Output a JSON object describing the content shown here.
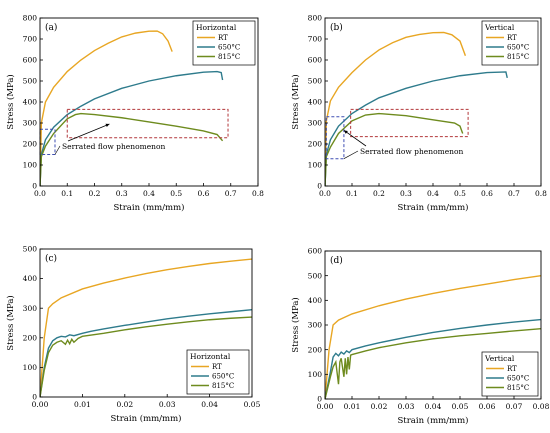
{
  "colors": {
    "RT": "#E8A623",
    "650C": "#2E7B8C",
    "815C": "#6E8B1E",
    "box_red": "#B2373A",
    "box_blue": "#3F4FB3"
  },
  "chart_data": [
    {
      "type": "line",
      "panel_label": "(a)",
      "legend_title": "Horizontal",
      "legend_position": "top-right",
      "xlabel": "Strain (mm/mm)",
      "ylabel": "Stress (MPa)",
      "xlim": [
        0,
        0.8
      ],
      "ylim": [
        0,
        800
      ],
      "xticks": [
        "0.0",
        "0.1",
        "0.2",
        "0.3",
        "0.4",
        "0.5",
        "0.6",
        "0.7",
        "0.8"
      ],
      "yticks": [
        "0",
        "100",
        "200",
        "300",
        "400",
        "500",
        "600",
        "700",
        "800"
      ],
      "annotation": "Serrated flow phenomenon",
      "series": [
        {
          "name": "RT",
          "color_key": "RT",
          "points": [
            [
              0,
              0
            ],
            [
              0.005,
              300
            ],
            [
              0.02,
              400
            ],
            [
              0.05,
              470
            ],
            [
              0.1,
              545
            ],
            [
              0.15,
              600
            ],
            [
              0.2,
              645
            ],
            [
              0.25,
              680
            ],
            [
              0.3,
              710
            ],
            [
              0.35,
              728
            ],
            [
              0.4,
              737
            ],
            [
              0.43,
              738
            ],
            [
              0.45,
              725
            ],
            [
              0.47,
              690
            ],
            [
              0.485,
              640
            ]
          ]
        },
        {
          "name": "650°C",
          "color_key": "650C",
          "points": [
            [
              0,
              0
            ],
            [
              0.005,
              150
            ],
            [
              0.02,
              220
            ],
            [
              0.05,
              280
            ],
            [
              0.1,
              340
            ],
            [
              0.15,
              380
            ],
            [
              0.2,
              415
            ],
            [
              0.3,
              465
            ],
            [
              0.4,
              500
            ],
            [
              0.5,
              525
            ],
            [
              0.6,
              542
            ],
            [
              0.65,
              545
            ],
            [
              0.665,
              540
            ],
            [
              0.67,
              505
            ]
          ]
        },
        {
          "name": "815°C",
          "color_key": "815C",
          "points": [
            [
              0,
              0
            ],
            [
              0.005,
              140
            ],
            [
              0.02,
              190
            ],
            [
              0.05,
              250
            ],
            [
              0.1,
              320
            ],
            [
              0.13,
              340
            ],
            [
              0.15,
              345
            ],
            [
              0.2,
              340
            ],
            [
              0.3,
              325
            ],
            [
              0.4,
              305
            ],
            [
              0.5,
              285
            ],
            [
              0.6,
              262
            ],
            [
              0.65,
              245
            ],
            [
              0.67,
              215
            ]
          ]
        }
      ],
      "boxes": [
        {
          "color_key": "box_red",
          "x": [
            0.1,
            0.69
          ],
          "y": [
            230,
            365
          ]
        },
        {
          "color_key": "box_blue",
          "x": [
            0,
            0.055
          ],
          "y": [
            150,
            270
          ]
        }
      ]
    },
    {
      "type": "line",
      "panel_label": "(b)",
      "legend_title": "Vertical",
      "legend_position": "top-right",
      "xlabel": "Strain (mm/mm)",
      "ylabel": "Stress (MPa)",
      "xlim": [
        0,
        0.8
      ],
      "ylim": [
        0,
        800
      ],
      "xticks": [
        "0.0",
        "0.1",
        "0.2",
        "0.3",
        "0.4",
        "0.5",
        "0.6",
        "0.7",
        "0.8"
      ],
      "yticks": [
        "0",
        "100",
        "200",
        "300",
        "400",
        "500",
        "600",
        "700",
        "800"
      ],
      "annotation": "Serrated flow phenomenon",
      "series": [
        {
          "name": "RT",
          "color_key": "RT",
          "points": [
            [
              0,
              0
            ],
            [
              0.005,
              310
            ],
            [
              0.02,
              405
            ],
            [
              0.05,
              470
            ],
            [
              0.1,
              540
            ],
            [
              0.15,
              600
            ],
            [
              0.2,
              648
            ],
            [
              0.25,
              682
            ],
            [
              0.3,
              708
            ],
            [
              0.35,
              722
            ],
            [
              0.4,
              730
            ],
            [
              0.44,
              731
            ],
            [
              0.47,
              720
            ],
            [
              0.5,
              690
            ],
            [
              0.52,
              620
            ]
          ]
        },
        {
          "name": "650°C",
          "color_key": "650C",
          "points": [
            [
              0,
              0
            ],
            [
              0.005,
              150
            ],
            [
              0.02,
              220
            ],
            [
              0.05,
              285
            ],
            [
              0.1,
              345
            ],
            [
              0.15,
              385
            ],
            [
              0.2,
              420
            ],
            [
              0.3,
              465
            ],
            [
              0.4,
              500
            ],
            [
              0.5,
              525
            ],
            [
              0.6,
              540
            ],
            [
              0.67,
              543
            ],
            [
              0.675,
              515
            ]
          ]
        },
        {
          "name": "815°C",
          "color_key": "815C",
          "points": [
            [
              0,
              0
            ],
            [
              0.005,
              140
            ],
            [
              0.02,
              185
            ],
            [
              0.05,
              250
            ],
            [
              0.1,
              310
            ],
            [
              0.15,
              338
            ],
            [
              0.2,
              345
            ],
            [
              0.3,
              335
            ],
            [
              0.4,
              315
            ],
            [
              0.48,
              300
            ],
            [
              0.5,
              285
            ],
            [
              0.51,
              250
            ]
          ]
        }
      ],
      "boxes": [
        {
          "color_key": "box_red",
          "x": [
            0.095,
            0.53
          ],
          "y": [
            235,
            365
          ]
        },
        {
          "color_key": "box_blue",
          "x": [
            0.005,
            0.07
          ],
          "y": [
            130,
            330
          ]
        }
      ]
    },
    {
      "type": "line",
      "panel_label": "(c)",
      "legend_title": "Horizontal",
      "legend_position": "bottom-right",
      "xlabel": "Strain (mm/mm)",
      "ylabel": "Stress (MPa)",
      "xlim": [
        0,
        0.05
      ],
      "ylim": [
        0,
        500
      ],
      "xticks": [
        "0.00",
        "0.01",
        "0.02",
        "0.03",
        "0.04",
        "0.05"
      ],
      "yticks": [
        "0",
        "100",
        "200",
        "300",
        "400",
        "500"
      ],
      "series": [
        {
          "name": "RT",
          "color_key": "RT",
          "points": [
            [
              0,
              0
            ],
            [
              0.001,
              200
            ],
            [
              0.002,
              300
            ],
            [
              0.003,
              315
            ],
            [
              0.005,
              335
            ],
            [
              0.01,
              365
            ],
            [
              0.015,
              385
            ],
            [
              0.02,
              402
            ],
            [
              0.025,
              417
            ],
            [
              0.03,
              430
            ],
            [
              0.035,
              441
            ],
            [
              0.04,
              451
            ],
            [
              0.045,
              459
            ],
            [
              0.05,
              466
            ]
          ]
        },
        {
          "name": "650°C",
          "color_key": "650C",
          "points": [
            [
              0,
              0
            ],
            [
              0.001,
              100
            ],
            [
              0.002,
              165
            ],
            [
              0.003,
              190
            ],
            [
              0.004,
              200
            ],
            [
              0.005,
              205
            ],
            [
              0.006,
              203
            ],
            [
              0.007,
              210
            ],
            [
              0.008,
              207
            ],
            [
              0.01,
              215
            ],
            [
              0.012,
              222
            ],
            [
              0.015,
              230
            ],
            [
              0.02,
              242
            ],
            [
              0.025,
              253
            ],
            [
              0.03,
              264
            ],
            [
              0.035,
              273
            ],
            [
              0.04,
              281
            ],
            [
              0.045,
              288
            ],
            [
              0.05,
              295
            ]
          ]
        },
        {
          "name": "815°C",
          "color_key": "815C",
          "points": [
            [
              0,
              0
            ],
            [
              0.001,
              90
            ],
            [
              0.002,
              150
            ],
            [
              0.003,
              175
            ],
            [
              0.004,
              185
            ],
            [
              0.005,
              190
            ],
            [
              0.006,
              178
            ],
            [
              0.0065,
              192
            ],
            [
              0.007,
              180
            ],
            [
              0.0075,
              195
            ],
            [
              0.008,
              185
            ],
            [
              0.009,
              198
            ],
            [
              0.01,
              205
            ],
            [
              0.015,
              215
            ],
            [
              0.02,
              227
            ],
            [
              0.025,
              237
            ],
            [
              0.03,
              246
            ],
            [
              0.035,
              254
            ],
            [
              0.04,
              261
            ],
            [
              0.045,
              266
            ],
            [
              0.05,
              270
            ]
          ]
        }
      ]
    },
    {
      "type": "line",
      "panel_label": "(d)",
      "legend_title": "Vertical",
      "legend_position": "bottom-right",
      "xlabel": "Strain (mm/mm)",
      "ylabel": "Stress (MPa)",
      "xlim": [
        0,
        0.08
      ],
      "ylim": [
        0,
        600
      ],
      "xticks": [
        "0.00",
        "0.01",
        "0.02",
        "0.03",
        "0.04",
        "0.05",
        "0.06",
        "0.07",
        "0.08"
      ],
      "yticks": [
        "0",
        "100",
        "200",
        "300",
        "400",
        "500",
        "600"
      ],
      "series": [
        {
          "name": "RT",
          "color_key": "RT",
          "points": [
            [
              0,
              0
            ],
            [
              0.0015,
              200
            ],
            [
              0.003,
              300
            ],
            [
              0.005,
              320
            ],
            [
              0.01,
              345
            ],
            [
              0.02,
              378
            ],
            [
              0.03,
              405
            ],
            [
              0.04,
              428
            ],
            [
              0.05,
              448
            ],
            [
              0.06,
              466
            ],
            [
              0.07,
              484
            ],
            [
              0.08,
              500
            ]
          ]
        },
        {
          "name": "650°C",
          "color_key": "650C",
          "points": [
            [
              0,
              0
            ],
            [
              0.002,
              110
            ],
            [
              0.003,
              170
            ],
            [
              0.004,
              185
            ],
            [
              0.005,
              175
            ],
            [
              0.006,
              190
            ],
            [
              0.007,
              182
            ],
            [
              0.008,
              195
            ],
            [
              0.009,
              188
            ],
            [
              0.01,
              200
            ],
            [
              0.015,
              215
            ],
            [
              0.02,
              228
            ],
            [
              0.03,
              250
            ],
            [
              0.04,
              270
            ],
            [
              0.05,
              286
            ],
            [
              0.06,
              300
            ],
            [
              0.07,
              312
            ],
            [
              0.08,
              322
            ]
          ]
        },
        {
          "name": "815°C",
          "color_key": "815C",
          "points": [
            [
              0,
              0
            ],
            [
              0.002,
              90
            ],
            [
              0.003,
              130
            ],
            [
              0.004,
              150
            ],
            [
              0.005,
              60
            ],
            [
              0.0055,
              150
            ],
            [
              0.006,
              165
            ],
            [
              0.007,
              90
            ],
            [
              0.0075,
              165
            ],
            [
              0.008,
              100
            ],
            [
              0.0085,
              170
            ],
            [
              0.009,
              120
            ],
            [
              0.0095,
              178
            ],
            [
              0.01,
              180
            ],
            [
              0.015,
              195
            ],
            [
              0.02,
              208
            ],
            [
              0.03,
              228
            ],
            [
              0.04,
              244
            ],
            [
              0.05,
              256
            ],
            [
              0.06,
              266
            ],
            [
              0.07,
              276
            ],
            [
              0.08,
              285
            ]
          ]
        }
      ]
    }
  ]
}
